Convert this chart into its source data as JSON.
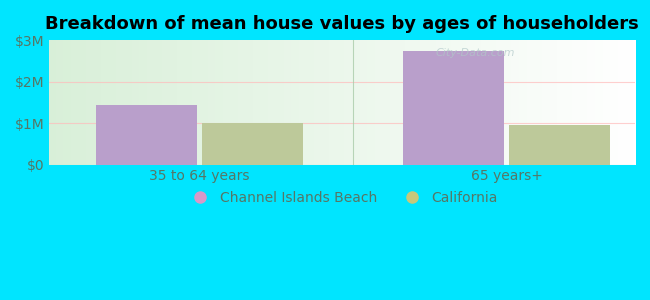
{
  "title": "Breakdown of mean house values by ages of householders",
  "categories": [
    "35 to 64 years",
    "65 years+"
  ],
  "series": {
    "Channel Islands Beach": [
      1450000,
      2750000
    ],
    "California": [
      1000000,
      950000
    ]
  },
  "bar_colors": {
    "Channel Islands Beach": "#b99fcb",
    "California": "#bdc99a"
  },
  "legend_dot_colors": {
    "Channel Islands Beach": "#d899c8",
    "California": "#c8c87a"
  },
  "ylim": [
    0,
    3000000
  ],
  "yticks": [
    0,
    1000000,
    2000000,
    3000000
  ],
  "ytick_labels": [
    "$0",
    "$1M",
    "$2M",
    "$3M"
  ],
  "outer_bg": "#00e5ff",
  "bar_width": 0.18,
  "title_fontsize": 13,
  "tick_fontsize": 10,
  "legend_fontsize": 10,
  "tick_color": "#557766",
  "grid_color": "#ffbbbb",
  "separator_color": "#aaccaa",
  "watermark_text": "City-Data.com",
  "watermark_color": "#b0c8c8",
  "watermark_alpha": 0.7
}
